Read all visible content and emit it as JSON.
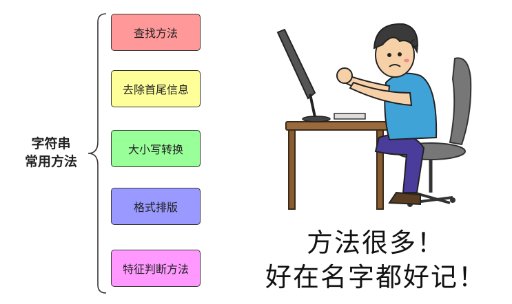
{
  "root": {
    "line1": "字符串",
    "line2": "常用方法"
  },
  "methods": [
    {
      "label": "查找方法",
      "color": "#ff9999"
    },
    {
      "label": "去除首尾信息",
      "color": "#ffff99"
    },
    {
      "label": "大小写转换",
      "color": "#99ff99"
    },
    {
      "label": "格式排版",
      "color": "#9999ff"
    },
    {
      "label": "特征判断方法",
      "color": "#ff99ff"
    }
  ],
  "caption": {
    "line1": "方法很多！",
    "line2": "好在名字都好记！"
  }
}
